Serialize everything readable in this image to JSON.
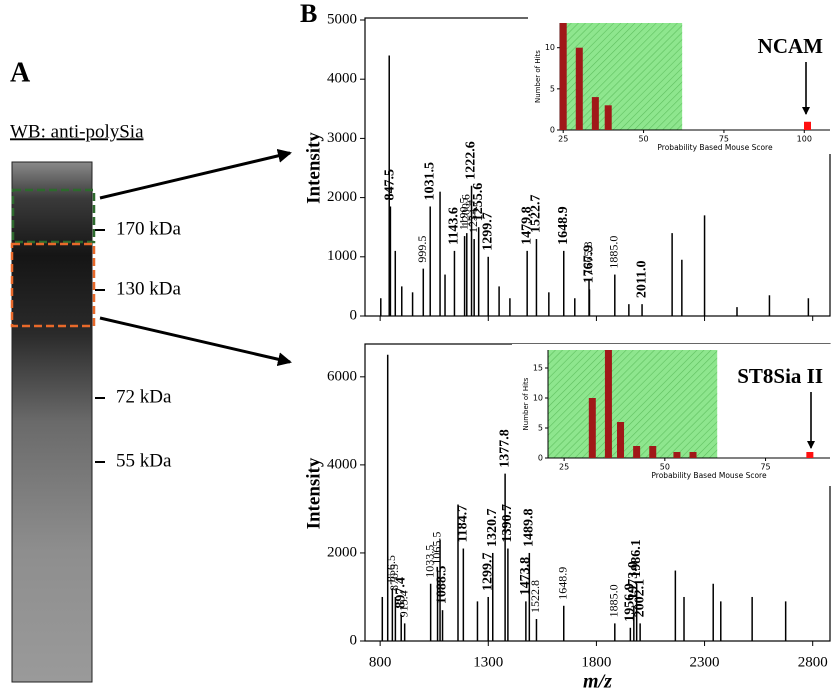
{
  "panel_a": {
    "label": "A",
    "title": "WB: anti-polySia",
    "markers": [
      "170 kDa",
      "130 kDa",
      "72 kDa",
      "55 kDa"
    ]
  },
  "panel_b_label": "B",
  "chart_data": [
    {
      "type": "stem",
      "title": "NCAM",
      "ylabel": "Intensity",
      "color": "#000000",
      "xlim": [
        730,
        2880
      ],
      "ylim": [
        0,
        5000
      ],
      "xticks": [
        800,
        1300,
        1800,
        2300,
        2800
      ],
      "yticks": [
        0,
        1000,
        2000,
        3000,
        4000,
        5000
      ],
      "xtick_labels": false,
      "x": [
        803,
        842,
        847.5,
        870,
        900,
        950,
        999.5,
        1031.5,
        1077,
        1100,
        1143.6,
        1190.5,
        1200.6,
        1222.6,
        1234.7,
        1255.6,
        1299.7,
        1350,
        1400,
        1479.8,
        1522.7,
        1580,
        1648.9,
        1700,
        1765.8,
        1767.9,
        1885.0,
        1950,
        2011.0,
        2150,
        2195,
        2300,
        2450,
        2600,
        2780
      ],
      "values": [
        300,
        4400,
        1850,
        1100,
        500,
        400,
        800,
        1850,
        2100,
        700,
        1100,
        1350,
        1400,
        2200,
        1300,
        1500,
        1000,
        500,
        300,
        1100,
        1300,
        400,
        1100,
        300,
        600,
        450,
        700,
        200,
        200,
        1400,
        950,
        1700,
        150,
        350,
        300
      ],
      "peak_labels": [
        null,
        null,
        "847.5",
        null,
        null,
        null,
        "999.5",
        "1031.5",
        null,
        null,
        "1143.6",
        "1190.5",
        "1200.6",
        "1222.6",
        "1234.7",
        "1255.6",
        "1299.7",
        null,
        null,
        "1479.8",
        "1522.7",
        null,
        "1648.9",
        null,
        "1765.8",
        "1767.9",
        "1885.0",
        null,
        "2011.0",
        null,
        null,
        null,
        null,
        null,
        null
      ],
      "label_weight": [
        null,
        null,
        "bold",
        null,
        null,
        null,
        "normal",
        "bold",
        null,
        null,
        "bold",
        "normal",
        "normal",
        "bold",
        "normal",
        "bold",
        "bold",
        null,
        null,
        "bold",
        "bold",
        null,
        "bold",
        null,
        "normal",
        "bold",
        "normal",
        null,
        "bold",
        null,
        null,
        null,
        null,
        null,
        null
      ]
    },
    {
      "type": "bar",
      "xlabel": "Probability Based Mouse Score",
      "ylabel": "Number of Hits",
      "xlim": [
        24,
        108
      ],
      "ylim": [
        0,
        13
      ],
      "xticks": [
        25,
        50,
        75,
        100
      ],
      "yticks": [
        0,
        5,
        10
      ],
      "threshold": 62,
      "threshold_color": "#8ee68e",
      "tick_color": "#2f2fd0",
      "series": [
        {
          "color": "#a01818",
          "x": [
            25,
            30,
            35,
            39
          ],
          "values": [
            13,
            10,
            4,
            3
          ]
        },
        {
          "color": "#ff1010",
          "x": [
            101
          ],
          "values": [
            1
          ]
        }
      ]
    },
    {
      "type": "stem",
      "title": "ST8Sia II",
      "ylabel": "Intensity",
      "xlabel": "m/z",
      "color": "#000000",
      "xlim": [
        730,
        2880
      ],
      "ylim": [
        0,
        6700
      ],
      "xticks": [
        800,
        1300,
        1800,
        2300,
        2800
      ],
      "yticks": [
        0,
        2000,
        4000,
        6000
      ],
      "xtick_labels": true,
      "x": [
        810,
        835,
        856.5,
        870.5,
        897.4,
        913.4,
        1033.5,
        1065.5,
        1077,
        1088.5,
        1160,
        1184.7,
        1250,
        1299.7,
        1320.7,
        1377.8,
        1390.7,
        1473.8,
        1489.8,
        1522.8,
        1648.9,
        1885.0,
        1956.9,
        1973.0,
        1986.1,
        2002.1,
        2165,
        2205,
        2340,
        2375,
        2520,
        2675
      ],
      "values": [
        1000,
        6500,
        1200,
        1000,
        600,
        400,
        1300,
        1600,
        2300,
        700,
        3100,
        2100,
        900,
        1000,
        2000,
        3800,
        2100,
        900,
        2000,
        500,
        800,
        400,
        300,
        800,
        1300,
        400,
        1600,
        1000,
        1300,
        900,
        1000,
        900
      ],
      "peak_labels": [
        null,
        null,
        "856.5",
        "870.5",
        "897.4",
        "913.4",
        "1033.5",
        "1065.5",
        null,
        "1088.5",
        null,
        "1184.7",
        null,
        "1299.7",
        "1320.7",
        "1377.8",
        "1390.7",
        "1473.8",
        "1489.8",
        "1522.8",
        "1648.9",
        "1885.0",
        "1956.9",
        "1973.0",
        "1986.1",
        "2002.1",
        null,
        null,
        null,
        null,
        null,
        null
      ],
      "label_weight": [
        null,
        null,
        "normal",
        "normal",
        "bold",
        "normal",
        "normal",
        "normal",
        null,
        "bold",
        null,
        "bold",
        null,
        "bold",
        "bold",
        "bold",
        "bold",
        "bold",
        "bold",
        "normal",
        "normal",
        "normal",
        "bold",
        "bold",
        "bold",
        "bold",
        null,
        null,
        null,
        null,
        null,
        null
      ]
    },
    {
      "type": "bar",
      "xlabel": "Probability Based Mouse Score",
      "ylabel": "Number of Hits",
      "xlim": [
        21,
        91
      ],
      "ylim": [
        0,
        18
      ],
      "xticks": [
        25,
        50,
        75
      ],
      "yticks": [
        0,
        5,
        10,
        15
      ],
      "threshold": 63,
      "threshold_color": "#8ee68e",
      "tick_color": "#2f2fd0",
      "series": [
        {
          "color": "#a01818",
          "x": [
            32,
            36,
            39,
            43,
            47,
            53,
            57
          ],
          "values": [
            10,
            18,
            6,
            2,
            2,
            1,
            1
          ]
        },
        {
          "color": "#ff1010",
          "x": [
            86
          ],
          "values": [
            1
          ]
        }
      ]
    }
  ]
}
